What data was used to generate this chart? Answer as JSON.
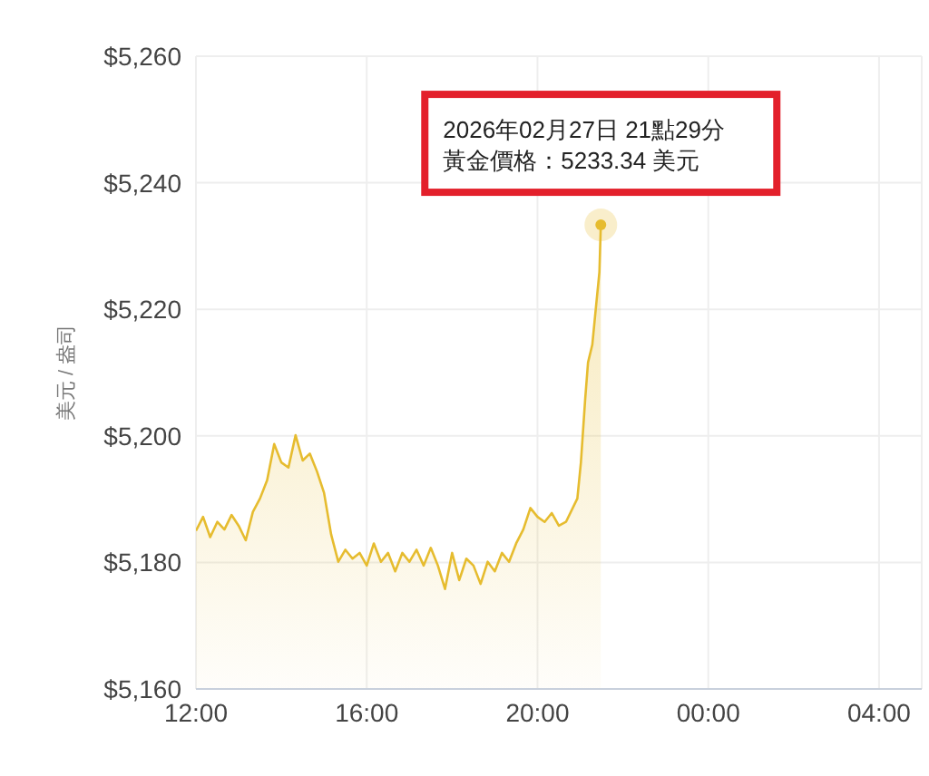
{
  "chart_data": {
    "type": "area",
    "ylabel": "美元 / 盎司",
    "x": [
      "2026-02-27T12:00",
      "2026-02-27T12:10",
      "2026-02-27T12:20",
      "2026-02-27T12:30",
      "2026-02-27T12:40",
      "2026-02-27T12:50",
      "2026-02-27T13:00",
      "2026-02-27T13:10",
      "2026-02-27T13:20",
      "2026-02-27T13:30",
      "2026-02-27T13:40",
      "2026-02-27T13:50",
      "2026-02-27T14:00",
      "2026-02-27T14:10",
      "2026-02-27T14:20",
      "2026-02-27T14:30",
      "2026-02-27T14:40",
      "2026-02-27T14:50",
      "2026-02-27T15:00",
      "2026-02-27T15:10",
      "2026-02-27T15:20",
      "2026-02-27T15:30",
      "2026-02-27T15:40",
      "2026-02-27T15:50",
      "2026-02-27T16:00",
      "2026-02-27T16:10",
      "2026-02-27T16:20",
      "2026-02-27T16:30",
      "2026-02-27T16:40",
      "2026-02-27T16:50",
      "2026-02-27T17:00",
      "2026-02-27T17:10",
      "2026-02-27T17:20",
      "2026-02-27T17:30",
      "2026-02-27T17:40",
      "2026-02-27T17:50",
      "2026-02-27T18:00",
      "2026-02-27T18:10",
      "2026-02-27T18:20",
      "2026-02-27T18:30",
      "2026-02-27T18:40",
      "2026-02-27T18:50",
      "2026-02-27T19:00",
      "2026-02-27T19:10",
      "2026-02-27T19:20",
      "2026-02-27T19:30",
      "2026-02-27T19:40",
      "2026-02-27T19:50",
      "2026-02-27T20:00",
      "2026-02-27T20:10",
      "2026-02-27T20:20",
      "2026-02-27T20:30",
      "2026-02-27T20:40",
      "2026-02-27T20:56",
      "2026-02-27T21:01",
      "2026-02-27T21:07",
      "2026-02-27T21:11",
      "2026-02-27T21:17",
      "2026-02-27T21:22",
      "2026-02-27T21:27",
      "2026-02-27T21:29"
    ],
    "series": [
      {
        "color": "#e6bc2f",
        "values": [
          5185,
          5187.2,
          5184,
          5186.4,
          5185.2,
          5187.5,
          5185.8,
          5183.5,
          5188,
          5190.1,
          5193,
          5198.7,
          5195.8,
          5195,
          5200.1,
          5196.1,
          5197.2,
          5194.4,
          5191,
          5184.4,
          5180.1,
          5182,
          5180.6,
          5181.5,
          5179.5,
          5183,
          5180.1,
          5181.5,
          5178.6,
          5181.5,
          5180.1,
          5182,
          5179.5,
          5182.3,
          5179.5,
          5175.8,
          5181.5,
          5177.2,
          5180.6,
          5179.5,
          5176.6,
          5180.1,
          5178.6,
          5181.5,
          5180.1,
          5183,
          5185.2,
          5188.6,
          5187.2,
          5186.4,
          5187.8,
          5185.8,
          5186.4,
          5190.1,
          5195.8,
          5205.8,
          5211.6,
          5214.4,
          5220.2,
          5225.9,
          5233.34
        ]
      }
    ],
    "xlim": [
      "2026-02-27T12:00",
      "2026-02-28T05:00"
    ],
    "xticks": [
      {
        "value": "2026-02-27T12:00",
        "label": "12:00"
      },
      {
        "value": "2026-02-27T16:00",
        "label": "16:00"
      },
      {
        "value": "2026-02-27T20:00",
        "label": "20:00"
      },
      {
        "value": "2026-02-28T00:00",
        "label": "00:00"
      },
      {
        "value": "2026-02-28T04:00",
        "label": "04:00"
      }
    ],
    "ylim": [
      5160,
      5260
    ],
    "yticks": [
      {
        "value": 5160,
        "label": "$5,160"
      },
      {
        "value": 5180,
        "label": "$5,180"
      },
      {
        "value": 5200,
        "label": "$5,200"
      },
      {
        "value": 5220,
        "label": "$5,220"
      },
      {
        "value": 5240,
        "label": "$5,240"
      },
      {
        "value": 5260,
        "label": "$5,260"
      }
    ],
    "grid": true,
    "legend": false,
    "marker": "none",
    "annotations": [
      "2026年02月27日 21點29分",
      {
        "text": "黃金價格：5233.34 美元",
        "x": "2026-02-27T21:29",
        "y": 5233.34
      }
    ]
  }
}
